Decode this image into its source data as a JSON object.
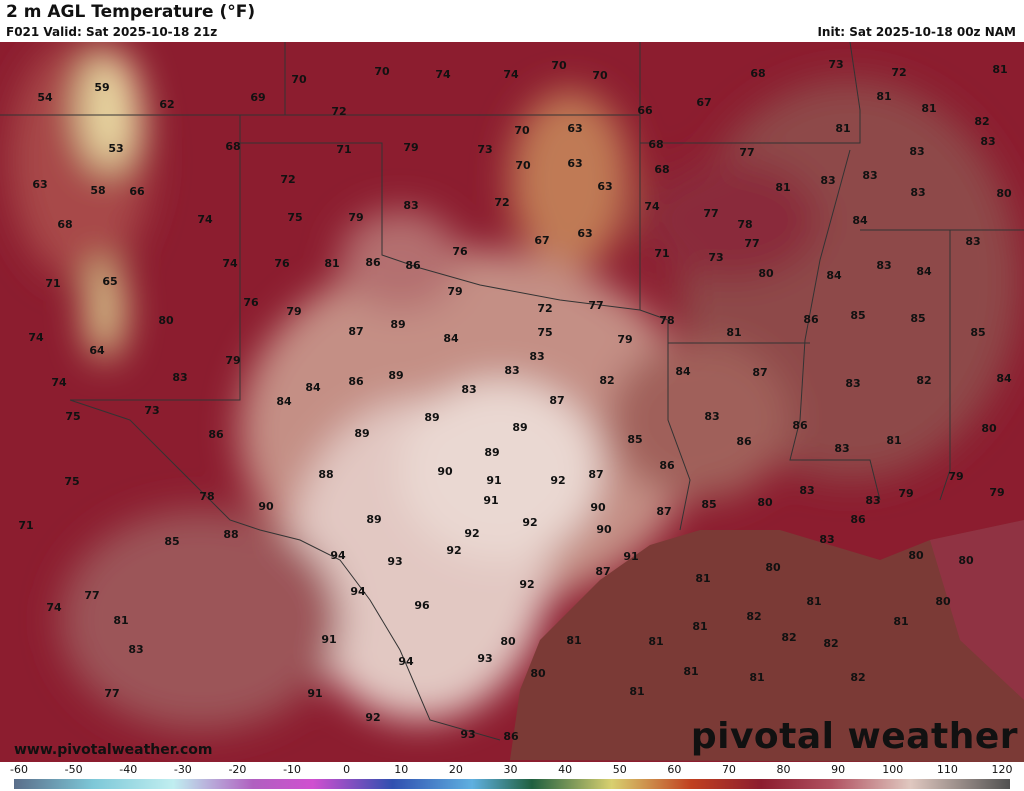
{
  "header": {
    "title": "2 m AGL Temperature (°F)",
    "valid": "F021 Valid: Sat 2025-10-18 21z",
    "init": "Init: Sat 2025-10-18 00z NAM"
  },
  "map": {
    "stations": [
      54,
      59,
      62,
      69,
      70,
      70,
      74,
      74,
      70,
      70,
      68,
      73,
      72,
      81,
      72,
      66,
      67,
      81,
      81,
      53,
      68,
      71,
      79,
      73,
      70,
      63,
      68,
      77,
      81,
      82,
      83,
      63,
      58,
      66,
      72,
      70,
      63,
      68,
      81,
      83,
      83,
      83,
      83,
      80,
      68,
      74,
      75,
      79,
      83,
      72,
      63,
      74,
      77,
      78,
      84,
      83,
      74,
      76,
      81,
      86,
      86,
      76,
      67,
      63,
      77,
      73,
      71,
      83,
      84,
      71,
      65,
      76,
      79,
      79,
      72,
      77,
      80,
      84,
      74,
      80,
      87,
      89,
      84,
      75,
      78,
      81,
      86,
      85,
      85,
      85,
      64,
      79,
      83,
      79,
      74,
      83,
      84,
      86,
      89,
      83,
      83,
      82,
      84,
      87,
      83,
      82,
      84,
      73,
      75,
      84,
      87,
      89,
      89,
      83,
      86,
      89,
      85,
      86,
      86,
      81,
      80,
      83,
      88,
      90,
      89,
      91,
      92,
      87,
      86,
      75,
      78,
      90,
      91,
      90,
      87,
      85,
      80,
      83,
      83,
      79,
      79,
      79,
      71,
      89,
      92,
      92,
      90,
      86,
      85,
      88,
      92,
      91,
      83,
      94,
      93,
      80,
      80,
      80,
      87,
      81,
      77,
      94,
      92,
      81,
      80,
      74,
      96,
      82,
      81,
      81,
      81,
      91,
      81,
      81,
      82,
      82,
      80,
      83,
      94,
      93,
      80,
      81,
      81,
      82,
      77,
      91,
      81,
      92,
      93,
      86
    ]
  },
  "footer": {
    "website": "www.pivotalweather.com",
    "logo": "pivotal weather"
  },
  "colorbar": {
    "ticks": [
      -60,
      -50,
      -40,
      -30,
      -20,
      -10,
      0,
      10,
      20,
      30,
      40,
      50,
      60,
      70,
      80,
      90,
      100,
      110,
      120
    ]
  }
}
